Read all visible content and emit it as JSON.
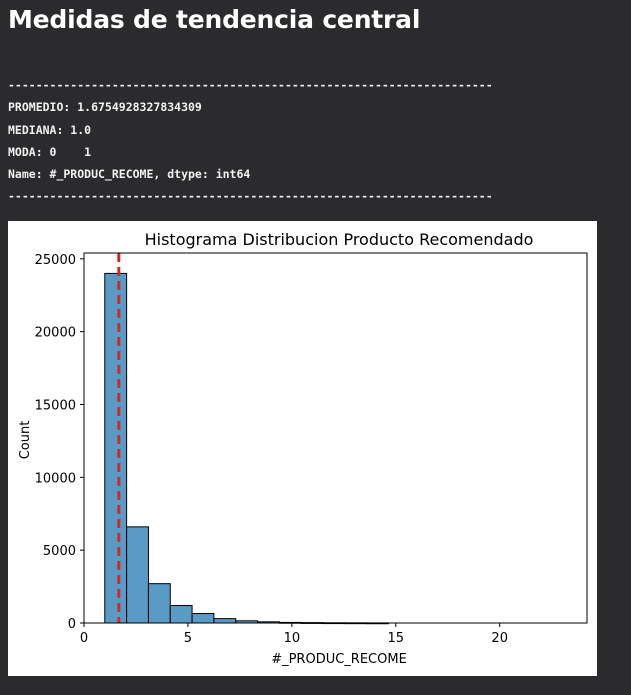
{
  "heading": "Medidas de tendencia central",
  "output": {
    "separator_top": "----------------------------------------------------------------------",
    "promedio": "PROMEDIO: 1.6754928327834309",
    "mediana": "MEDIANA: 1.0",
    "moda": "MODA: 0    1",
    "name_line": "Name: #_PRODUC_RECOME, dtype: int64",
    "separator_bottom": "----------------------------------------------------------------------"
  },
  "chart_data": {
    "type": "bar",
    "title": "Histograma Distribucion Producto Recomendado",
    "xlabel": "#_PRODUC_RECOME",
    "ylabel": "Count",
    "xlim": [
      0,
      24.2
    ],
    "ylim": [
      0,
      25400
    ],
    "xticks": [
      "0",
      "5",
      "10",
      "15",
      "20"
    ],
    "yticks": [
      "0",
      "5000",
      "10000",
      "15000",
      "20000",
      "25000"
    ],
    "bin_width": 1.05,
    "bins": [
      {
        "x0": 1.0,
        "count": 24000
      },
      {
        "x0": 2.05,
        "count": 6600
      },
      {
        "x0": 3.1,
        "count": 2700
      },
      {
        "x0": 4.15,
        "count": 1200
      },
      {
        "x0": 5.2,
        "count": 650
      },
      {
        "x0": 6.25,
        "count": 300
      },
      {
        "x0": 7.3,
        "count": 150
      },
      {
        "x0": 8.35,
        "count": 80
      },
      {
        "x0": 9.4,
        "count": 40
      },
      {
        "x0": 10.45,
        "count": 25
      },
      {
        "x0": 11.5,
        "count": 15
      },
      {
        "x0": 12.55,
        "count": 10
      },
      {
        "x0": 13.6,
        "count": 5
      }
    ],
    "mean_line": {
      "x": 1.6754928327834309,
      "color": "#d62728"
    },
    "bar_color": "#5a9bc6",
    "edge_color": "#000000",
    "grid": false
  }
}
